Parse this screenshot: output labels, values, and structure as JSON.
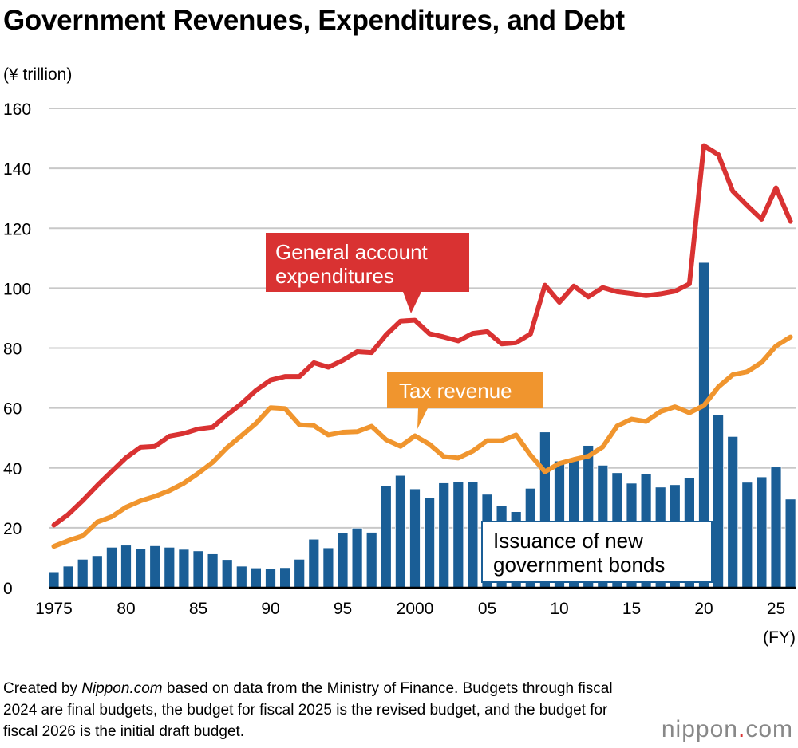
{
  "title": "Government Revenues, Expenditures, and Debt",
  "note_prefix": "Created by ",
  "note_brand": "Nippon.com",
  "note_suffix": " based on data from the Ministry of Finance. Budgets through fiscal 2024 are final budgets, the budget for fiscal 2025 is the revised budget, and the budget for fiscal 2026 is the initial draft budget.",
  "logo": {
    "main": "nippon",
    "dot": ".",
    "tail": "com"
  },
  "chart_data": {
    "type": "bar+line",
    "title": "Government Revenues, Expenditures, and Debt",
    "ylabel": "(¥ trillion)",
    "xlabel": "(FY)",
    "ylim": [
      0,
      160
    ],
    "yticks": [
      0,
      20,
      40,
      60,
      80,
      100,
      120,
      140,
      160
    ],
    "xticks": [
      {
        "year": 1975,
        "label": "1975"
      },
      {
        "year": 1980,
        "label": "80"
      },
      {
        "year": 1985,
        "label": "85"
      },
      {
        "year": 1990,
        "label": "90"
      },
      {
        "year": 1995,
        "label": "95"
      },
      {
        "year": 2000,
        "label": "2000"
      },
      {
        "year": 2005,
        "label": "05"
      },
      {
        "year": 2010,
        "label": "10"
      },
      {
        "year": 2015,
        "label": "15"
      },
      {
        "year": 2020,
        "label": "20"
      },
      {
        "year": 2025,
        "label": "25"
      }
    ],
    "grid": true,
    "x_start": 1975,
    "x_end": 2026,
    "colors": {
      "expenditures": "#d93232",
      "tax": "#f0952e",
      "bonds": "#1a5e96"
    },
    "series": [
      {
        "name": "General account expenditures",
        "type": "line",
        "values": [
          20.9,
          24.5,
          29.1,
          34.1,
          38.8,
          43.4,
          46.9,
          47.2,
          50.6,
          51.5,
          53.0,
          53.6,
          57.7,
          61.5,
          65.9,
          69.3,
          70.5,
          70.5,
          75.1,
          73.6,
          75.9,
          78.8,
          78.5,
          84.4,
          89.0,
          89.3,
          84.8,
          83.7,
          82.4,
          84.9,
          85.5,
          81.4,
          81.8,
          84.7,
          101.0,
          95.3,
          100.7,
          97.1,
          100.2,
          98.8,
          98.2,
          97.5,
          98.1,
          99.0,
          101.4,
          147.6,
          144.6,
          132.4,
          127.6,
          123.0,
          133.5,
          122.3
        ]
      },
      {
        "name": "Tax revenue",
        "type": "line",
        "values": [
          13.8,
          15.7,
          17.3,
          21.9,
          23.7,
          26.9,
          29.0,
          30.5,
          32.4,
          34.9,
          38.2,
          41.9,
          46.8,
          50.8,
          54.9,
          60.1,
          59.8,
          54.4,
          54.1,
          51.0,
          51.9,
          52.1,
          53.9,
          49.4,
          47.2,
          50.7,
          47.9,
          43.8,
          43.3,
          45.6,
          49.1,
          49.1,
          51.0,
          44.3,
          38.7,
          41.5,
          42.8,
          43.9,
          47.0,
          54.0,
          56.3,
          55.5,
          58.8,
          60.4,
          58.4,
          60.8,
          67.0,
          71.1,
          72.1,
          75.2,
          80.7,
          83.7
        ]
      },
      {
        "name": "Issuance of new government bonds",
        "type": "bar",
        "values": [
          5.3,
          7.2,
          9.5,
          10.7,
          13.5,
          14.2,
          12.9,
          14.0,
          13.5,
          12.8,
          12.3,
          11.3,
          9.4,
          7.2,
          6.6,
          6.3,
          6.7,
          9.5,
          16.2,
          13.3,
          18.3,
          19.9,
          18.5,
          34.0,
          37.5,
          33.0,
          30.0,
          35.0,
          35.3,
          35.5,
          31.2,
          27.5,
          25.4,
          33.2,
          52.0,
          42.3,
          42.8,
          47.5,
          40.9,
          38.4,
          34.9,
          38.0,
          33.6,
          34.4,
          36.6,
          108.6,
          57.7,
          50.5,
          35.2,
          37.0,
          40.3,
          29.6
        ]
      }
    ],
    "labels": {
      "expenditures": [
        "General account",
        "expenditures"
      ],
      "tax": "Tax revenue",
      "bonds": [
        "Issuance of new",
        "government bonds"
      ]
    }
  }
}
